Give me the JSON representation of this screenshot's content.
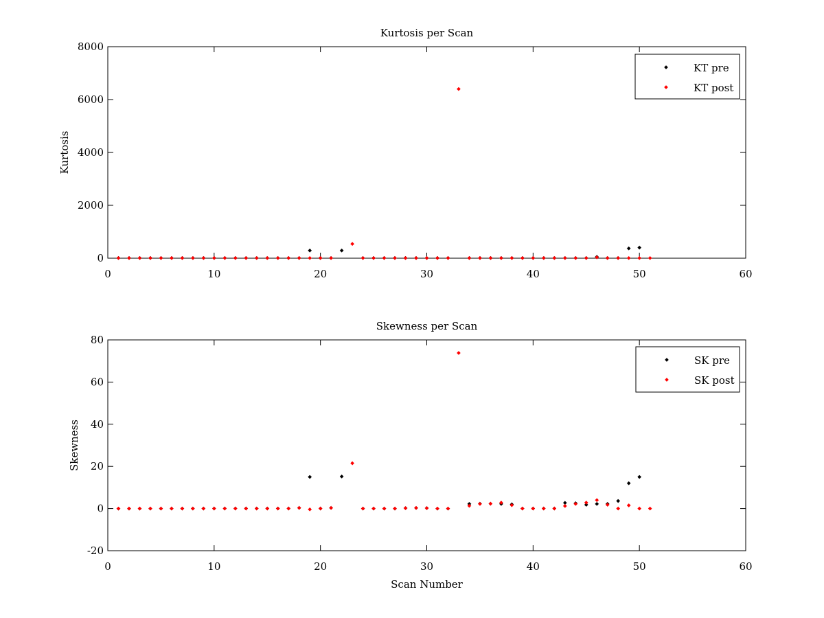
{
  "chart_data": [
    {
      "type": "scatter",
      "title": "Kurtosis per Scan",
      "xlabel": "",
      "ylabel": "Kurtosis",
      "xlim": [
        0,
        60
      ],
      "ylim": [
        0,
        8000
      ],
      "xticks": [
        0,
        10,
        20,
        30,
        40,
        50,
        60
      ],
      "yticks": [
        0,
        2000,
        4000,
        6000,
        8000
      ],
      "grid": false,
      "legend_position": "top-right",
      "series": [
        {
          "name": "KT pre",
          "color": "#000000",
          "points": [
            [
              1,
              8
            ],
            [
              2,
              8
            ],
            [
              3,
              8
            ],
            [
              4,
              8
            ],
            [
              5,
              8
            ],
            [
              6,
              8
            ],
            [
              7,
              8
            ],
            [
              8,
              8
            ],
            [
              9,
              8
            ],
            [
              10,
              8
            ],
            [
              11,
              8
            ],
            [
              12,
              8
            ],
            [
              13,
              8
            ],
            [
              14,
              8
            ],
            [
              15,
              8
            ],
            [
              16,
              8
            ],
            [
              17,
              8
            ],
            [
              18,
              8
            ],
            [
              19,
              290
            ],
            [
              20,
              8
            ],
            [
              21,
              8
            ],
            [
              22,
              290
            ],
            [
              24,
              8
            ],
            [
              25,
              8
            ],
            [
              26,
              8
            ],
            [
              27,
              8
            ],
            [
              28,
              8
            ],
            [
              29,
              8
            ],
            [
              30,
              8
            ],
            [
              31,
              8
            ],
            [
              32,
              8
            ],
            [
              34,
              8
            ],
            [
              35,
              8
            ],
            [
              36,
              8
            ],
            [
              37,
              8
            ],
            [
              38,
              8
            ],
            [
              39,
              8
            ],
            [
              40,
              8
            ],
            [
              41,
              8
            ],
            [
              42,
              8
            ],
            [
              43,
              8
            ],
            [
              44,
              8
            ],
            [
              45,
              8
            ],
            [
              46,
              50
            ],
            [
              47,
              8
            ],
            [
              48,
              8
            ],
            [
              49,
              370
            ],
            [
              50,
              400
            ]
          ]
        },
        {
          "name": "KT post",
          "color": "#ff0000",
          "points": [
            [
              1,
              5
            ],
            [
              2,
              5
            ],
            [
              3,
              5
            ],
            [
              4,
              5
            ],
            [
              5,
              5
            ],
            [
              6,
              5
            ],
            [
              7,
              5
            ],
            [
              8,
              5
            ],
            [
              9,
              5
            ],
            [
              10,
              5
            ],
            [
              11,
              5
            ],
            [
              12,
              5
            ],
            [
              13,
              5
            ],
            [
              14,
              5
            ],
            [
              15,
              5
            ],
            [
              16,
              5
            ],
            [
              17,
              5
            ],
            [
              18,
              5
            ],
            [
              19,
              5
            ],
            [
              20,
              5
            ],
            [
              21,
              5
            ],
            [
              23,
              540
            ],
            [
              24,
              5
            ],
            [
              25,
              5
            ],
            [
              26,
              5
            ],
            [
              27,
              5
            ],
            [
              28,
              5
            ],
            [
              29,
              5
            ],
            [
              30,
              5
            ],
            [
              31,
              5
            ],
            [
              32,
              5
            ],
            [
              33,
              6400
            ],
            [
              34,
              5
            ],
            [
              35,
              5
            ],
            [
              36,
              5
            ],
            [
              37,
              5
            ],
            [
              38,
              5
            ],
            [
              39,
              5
            ],
            [
              40,
              5
            ],
            [
              41,
              5
            ],
            [
              42,
              5
            ],
            [
              43,
              5
            ],
            [
              44,
              5
            ],
            [
              45,
              5
            ],
            [
              46,
              30
            ],
            [
              47,
              5
            ],
            [
              48,
              5
            ],
            [
              49,
              5
            ],
            [
              50,
              5
            ],
            [
              51,
              5
            ]
          ]
        }
      ]
    },
    {
      "type": "scatter",
      "title": "Skewness per Scan",
      "xlabel": "Scan Number",
      "ylabel": "Skewness",
      "xlim": [
        0,
        60
      ],
      "ylim": [
        -20,
        80
      ],
      "xticks": [
        0,
        10,
        20,
        30,
        40,
        50,
        60
      ],
      "yticks": [
        -20,
        0,
        20,
        40,
        60,
        80
      ],
      "grid": false,
      "legend_position": "top-right",
      "series": [
        {
          "name": "SK pre",
          "color": "#000000",
          "points": [
            [
              1,
              0
            ],
            [
              2,
              0
            ],
            [
              3,
              0
            ],
            [
              4,
              0
            ],
            [
              5,
              0
            ],
            [
              6,
              0
            ],
            [
              7,
              0
            ],
            [
              8,
              0
            ],
            [
              9,
              0
            ],
            [
              10,
              0
            ],
            [
              11,
              0
            ],
            [
              12,
              0
            ],
            [
              13,
              0
            ],
            [
              14,
              0
            ],
            [
              15,
              0
            ],
            [
              16,
              0
            ],
            [
              17,
              0
            ],
            [
              18,
              0.3
            ],
            [
              19,
              15
            ],
            [
              20,
              0
            ],
            [
              21,
              0.3
            ],
            [
              22,
              15.2
            ],
            [
              24,
              0
            ],
            [
              25,
              0
            ],
            [
              26,
              0
            ],
            [
              27,
              0
            ],
            [
              28,
              0.2
            ],
            [
              29,
              0.3
            ],
            [
              30,
              0.2
            ],
            [
              31,
              0
            ],
            [
              32,
              0
            ],
            [
              34,
              2.2
            ],
            [
              35,
              2.3
            ],
            [
              36,
              2.3
            ],
            [
              37,
              2.2
            ],
            [
              38,
              2
            ],
            [
              39,
              0
            ],
            [
              40,
              0
            ],
            [
              41,
              0
            ],
            [
              42,
              0
            ],
            [
              43,
              2.7
            ],
            [
              44,
              2.5
            ],
            [
              45,
              1.8
            ],
            [
              46,
              2.2
            ],
            [
              47,
              2.2
            ],
            [
              48,
              3.6
            ],
            [
              49,
              12
            ],
            [
              50,
              15
            ]
          ]
        },
        {
          "name": "SK post",
          "color": "#ff0000",
          "points": [
            [
              1,
              0
            ],
            [
              2,
              0
            ],
            [
              3,
              0
            ],
            [
              4,
              0
            ],
            [
              5,
              0
            ],
            [
              6,
              0
            ],
            [
              7,
              0
            ],
            [
              8,
              0
            ],
            [
              9,
              0
            ],
            [
              10,
              0
            ],
            [
              11,
              0
            ],
            [
              12,
              0
            ],
            [
              13,
              0
            ],
            [
              14,
              0
            ],
            [
              15,
              0
            ],
            [
              16,
              0
            ],
            [
              17,
              0
            ],
            [
              18,
              0.3
            ],
            [
              19,
              -0.4
            ],
            [
              20,
              0
            ],
            [
              21,
              0.3
            ],
            [
              23,
              21.5
            ],
            [
              24,
              0
            ],
            [
              25,
              0
            ],
            [
              26,
              0
            ],
            [
              27,
              0
            ],
            [
              28,
              0.2
            ],
            [
              29,
              0.3
            ],
            [
              30,
              0.2
            ],
            [
              31,
              0
            ],
            [
              32,
              0
            ],
            [
              33,
              73.8
            ],
            [
              34,
              1.3
            ],
            [
              35,
              2.2
            ],
            [
              36,
              2.3
            ],
            [
              37,
              2.8
            ],
            [
              38,
              1.6
            ],
            [
              39,
              0
            ],
            [
              40,
              0
            ],
            [
              41,
              0
            ],
            [
              42,
              0
            ],
            [
              43,
              1.2
            ],
            [
              44,
              2.2
            ],
            [
              45,
              2.8
            ],
            [
              46,
              4
            ],
            [
              47,
              1.8
            ],
            [
              48,
              0
            ],
            [
              49,
              1.5
            ],
            [
              50,
              0
            ],
            [
              51,
              0
            ]
          ]
        }
      ]
    }
  ]
}
